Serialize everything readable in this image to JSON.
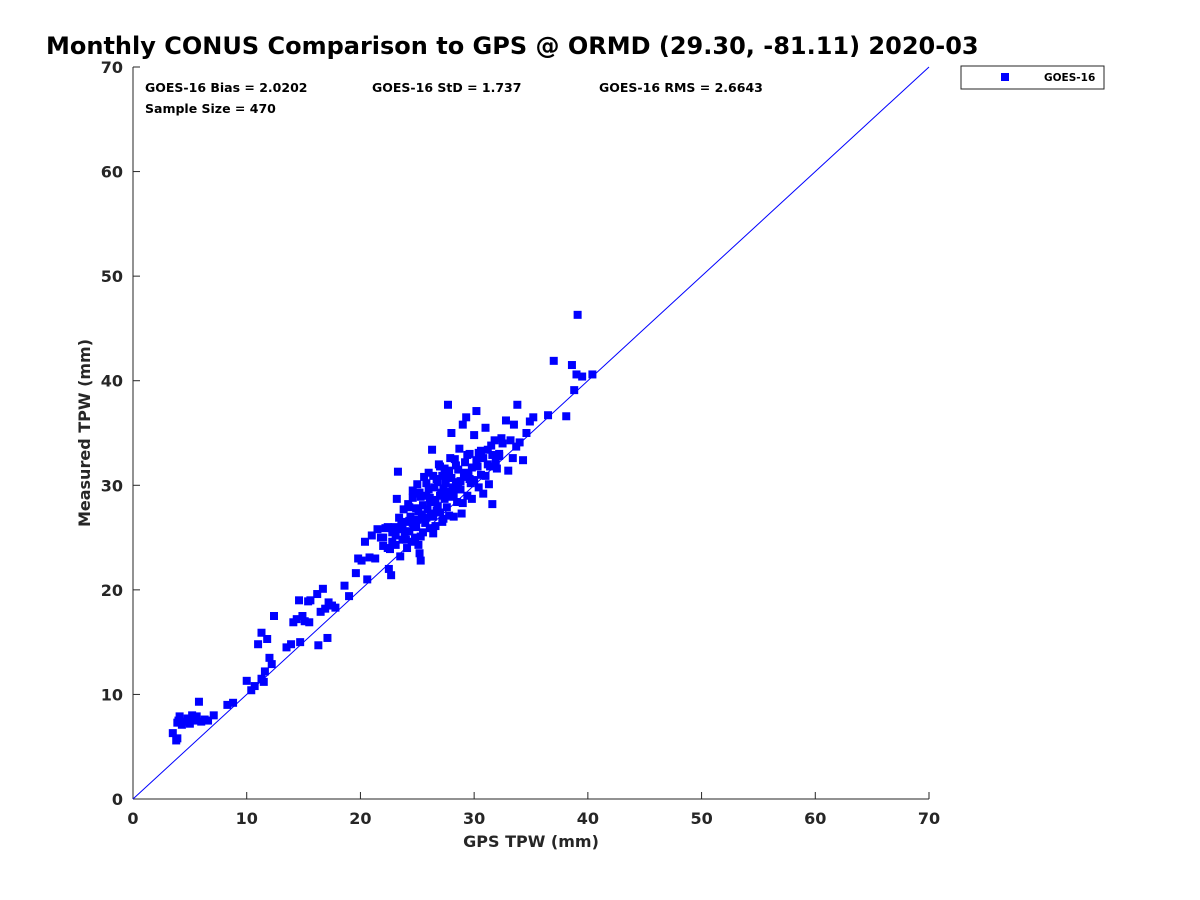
{
  "chart_data": {
    "type": "scatter",
    "title": "Monthly CONUS Comparison to GPS @ ORMD (29.30, -81.11) 2020-03",
    "xlabel": "GPS TPW (mm)",
    "ylabel": "Measured TPW (mm)",
    "xlim": [
      0,
      70
    ],
    "ylim": [
      0,
      70
    ],
    "xticks": [
      "0",
      "10",
      "20",
      "30",
      "40",
      "50",
      "60",
      "70"
    ],
    "yticks": [
      "0",
      "10",
      "20",
      "30",
      "40",
      "50",
      "60",
      "70"
    ],
    "grid": false,
    "legend": {
      "position": "top-right, outside",
      "entries": [
        "GOES-16"
      ]
    },
    "stats": {
      "bias": "GOES-16 Bias = 2.0202",
      "std": "GOES-16 StD = 1.737",
      "rms": "GOES-16 RMS = 2.6643",
      "sample_size": "Sample Size = 470"
    },
    "reference_line": {
      "name": "1:1 line",
      "x": [
        0,
        70
      ],
      "y": [
        0,
        70
      ],
      "color": "#0000ff"
    },
    "series": [
      {
        "name": "GOES-16",
        "marker": "square",
        "color": "#0000ff",
        "points": [
          [
            3.5,
            6.3
          ],
          [
            3.8,
            5.6
          ],
          [
            3.9,
            5.8
          ],
          [
            3.9,
            7.3
          ],
          [
            4.0,
            7.5
          ],
          [
            4.1,
            7.9
          ],
          [
            4.3,
            7.1
          ],
          [
            4.5,
            7.4
          ],
          [
            4.8,
            7.7
          ],
          [
            5.0,
            7.2
          ],
          [
            5.2,
            8.0
          ],
          [
            5.4,
            7.5
          ],
          [
            5.6,
            7.9
          ],
          [
            5.8,
            9.3
          ],
          [
            6.0,
            7.4
          ],
          [
            6.3,
            7.6
          ],
          [
            6.6,
            7.5
          ],
          [
            7.1,
            8.0
          ],
          [
            8.3,
            9.0
          ],
          [
            8.8,
            9.2
          ],
          [
            10.0,
            11.3
          ],
          [
            10.4,
            10.4
          ],
          [
            10.7,
            10.8
          ],
          [
            11.0,
            14.8
          ],
          [
            11.3,
            15.9
          ],
          [
            11.3,
            11.5
          ],
          [
            11.5,
            11.2
          ],
          [
            11.6,
            12.2
          ],
          [
            11.8,
            15.3
          ],
          [
            12.0,
            13.5
          ],
          [
            12.2,
            12.9
          ],
          [
            12.4,
            17.5
          ],
          [
            13.5,
            14.5
          ],
          [
            13.9,
            14.8
          ],
          [
            14.1,
            16.9
          ],
          [
            14.4,
            17.2
          ],
          [
            14.6,
            19.0
          ],
          [
            14.7,
            15.0
          ],
          [
            14.9,
            17.5
          ],
          [
            15.1,
            17.0
          ],
          [
            15.4,
            18.9
          ],
          [
            15.5,
            16.9
          ],
          [
            15.6,
            19.0
          ],
          [
            16.2,
            19.6
          ],
          [
            16.3,
            14.7
          ],
          [
            16.5,
            17.9
          ],
          [
            16.7,
            20.1
          ],
          [
            16.9,
            18.2
          ],
          [
            17.1,
            15.4
          ],
          [
            17.2,
            18.8
          ],
          [
            17.5,
            18.5
          ],
          [
            17.8,
            18.3
          ],
          [
            18.6,
            20.4
          ],
          [
            19.0,
            19.4
          ],
          [
            19.6,
            21.6
          ],
          [
            19.8,
            23.0
          ],
          [
            20.1,
            22.8
          ],
          [
            20.4,
            24.6
          ],
          [
            20.6,
            21.0
          ],
          [
            20.8,
            23.1
          ],
          [
            21.0,
            25.2
          ],
          [
            21.3,
            23.0
          ],
          [
            21.5,
            25.8
          ],
          [
            21.8,
            25.0
          ],
          [
            22.0,
            24.2
          ],
          [
            22.2,
            25.9
          ],
          [
            22.4,
            24.0
          ],
          [
            22.5,
            22.0
          ],
          [
            22.6,
            23.9
          ],
          [
            22.7,
            21.4
          ],
          [
            22.8,
            25.5
          ],
          [
            23.0,
            26.0
          ],
          [
            23.1,
            24.3
          ],
          [
            23.2,
            28.7
          ],
          [
            23.3,
            31.3
          ],
          [
            23.4,
            25.8
          ],
          [
            23.5,
            23.2
          ],
          [
            23.6,
            26.3
          ],
          [
            23.7,
            24.8
          ],
          [
            23.8,
            27.7
          ],
          [
            23.9,
            25.2
          ],
          [
            24.0,
            26.5
          ],
          [
            24.1,
            24.0
          ],
          [
            24.2,
            28.2
          ],
          [
            24.3,
            25.6
          ],
          [
            24.4,
            27.0
          ],
          [
            24.5,
            24.6
          ],
          [
            24.6,
            29.5
          ],
          [
            24.7,
            26.2
          ],
          [
            24.8,
            25.0
          ],
          [
            24.9,
            27.8
          ],
          [
            25.0,
            30.1
          ],
          [
            25.0,
            26.7
          ],
          [
            25.1,
            24.3
          ],
          [
            25.2,
            23.5
          ],
          [
            25.3,
            28.9
          ],
          [
            25.3,
            22.8
          ],
          [
            25.4,
            27.2
          ],
          [
            25.5,
            25.5
          ],
          [
            25.6,
            30.8
          ],
          [
            25.7,
            26.4
          ],
          [
            25.8,
            29.0
          ],
          [
            25.9,
            27.7
          ],
          [
            26.0,
            31.2
          ],
          [
            26.1,
            25.9
          ],
          [
            26.2,
            28.4
          ],
          [
            26.3,
            33.4
          ],
          [
            26.4,
            27.0
          ],
          [
            26.5,
            29.8
          ],
          [
            26.6,
            26.1
          ],
          [
            26.7,
            30.6
          ],
          [
            26.8,
            28.0
          ],
          [
            26.9,
            32.0
          ],
          [
            27.0,
            27.4
          ],
          [
            27.1,
            29.3
          ],
          [
            27.2,
            30.9
          ],
          [
            27.3,
            26.8
          ],
          [
            27.4,
            28.7
          ],
          [
            27.5,
            30.2
          ],
          [
            27.6,
            27.9
          ],
          [
            27.7,
            37.7
          ],
          [
            27.8,
            31.4
          ],
          [
            27.9,
            28.9
          ],
          [
            28.0,
            35.0
          ],
          [
            28.1,
            29.8
          ],
          [
            28.2,
            27.0
          ],
          [
            28.3,
            32.5
          ],
          [
            28.4,
            30.3
          ],
          [
            28.5,
            28.4
          ],
          [
            28.6,
            31.5
          ],
          [
            28.7,
            33.5
          ],
          [
            28.8,
            29.6
          ],
          [
            28.9,
            27.3
          ],
          [
            29.0,
            35.8
          ],
          [
            29.1,
            30.8
          ],
          [
            29.2,
            32.2
          ],
          [
            29.3,
            36.5
          ],
          [
            29.4,
            29.0
          ],
          [
            29.5,
            31.1
          ],
          [
            29.6,
            33.0
          ],
          [
            29.7,
            30.2
          ],
          [
            29.8,
            28.7
          ],
          [
            30.0,
            34.8
          ],
          [
            30.2,
            37.1
          ],
          [
            30.3,
            31.8
          ],
          [
            30.4,
            29.8
          ],
          [
            30.6,
            33.3
          ],
          [
            30.8,
            29.2
          ],
          [
            31.0,
            35.5
          ],
          [
            31.2,
            32.0
          ],
          [
            31.3,
            30.1
          ],
          [
            31.5,
            33.8
          ],
          [
            31.6,
            28.2
          ],
          [
            31.8,
            34.3
          ],
          [
            32.0,
            31.6
          ],
          [
            32.2,
            32.8
          ],
          [
            32.4,
            34.5
          ],
          [
            32.8,
            36.2
          ],
          [
            33.0,
            31.4
          ],
          [
            33.2,
            34.3
          ],
          [
            33.4,
            32.6
          ],
          [
            33.5,
            35.8
          ],
          [
            33.7,
            33.7
          ],
          [
            33.8,
            37.7
          ],
          [
            34.0,
            34.1
          ],
          [
            34.3,
            32.4
          ],
          [
            34.6,
            35.0
          ],
          [
            34.9,
            36.1
          ],
          [
            35.2,
            36.5
          ],
          [
            36.5,
            36.7
          ],
          [
            37.0,
            41.9
          ],
          [
            38.1,
            36.6
          ],
          [
            38.6,
            41.5
          ],
          [
            38.8,
            39.1
          ],
          [
            39.0,
            40.6
          ],
          [
            39.1,
            46.3
          ],
          [
            39.5,
            40.4
          ],
          [
            40.4,
            40.6
          ],
          [
            24.1,
            25.6
          ],
          [
            24.3,
            27.9
          ],
          [
            24.6,
            26.4
          ],
          [
            24.8,
            29.2
          ],
          [
            25.1,
            27.5
          ],
          [
            25.3,
            25.1
          ],
          [
            25.5,
            28.1
          ],
          [
            25.8,
            26.9
          ],
          [
            26.0,
            29.6
          ],
          [
            26.2,
            27.3
          ],
          [
            26.4,
            25.4
          ],
          [
            26.6,
            28.6
          ],
          [
            26.8,
            30.3
          ],
          [
            27.0,
            29.0
          ],
          [
            27.2,
            26.5
          ],
          [
            27.4,
            31.6
          ],
          [
            27.6,
            29.4
          ],
          [
            27.8,
            27.1
          ],
          [
            28.0,
            30.7
          ],
          [
            28.2,
            29.1
          ],
          [
            28.4,
            31.9
          ],
          [
            28.6,
            29.9
          ],
          [
            28.8,
            30.4
          ],
          [
            29.0,
            28.3
          ],
          [
            29.2,
            31.2
          ],
          [
            29.4,
            32.9
          ],
          [
            29.6,
            30.6
          ],
          [
            29.8,
            31.7
          ],
          [
            30.0,
            30.5
          ],
          [
            30.2,
            32.4
          ],
          [
            30.4,
            33.1
          ],
          [
            30.6,
            31.0
          ],
          [
            30.8,
            32.6
          ],
          [
            31.0,
            30.9
          ],
          [
            31.2,
            33.4
          ],
          [
            31.4,
            31.8
          ],
          [
            31.6,
            32.9
          ],
          [
            31.9,
            32.2
          ],
          [
            32.2,
            33.0
          ],
          [
            32.5,
            34.0
          ],
          [
            22.0,
            25.0
          ],
          [
            22.4,
            26.0
          ],
          [
            22.8,
            24.6
          ],
          [
            23.1,
            25.2
          ],
          [
            23.4,
            26.9
          ],
          [
            23.7,
            25.9
          ],
          [
            24.0,
            24.8
          ],
          [
            24.3,
            26.6
          ],
          [
            24.6,
            28.8
          ],
          [
            24.9,
            26.0
          ],
          [
            25.2,
            29.3
          ],
          [
            25.5,
            26.8
          ],
          [
            25.8,
            30.2
          ],
          [
            26.1,
            28.8
          ],
          [
            26.4,
            30.9
          ],
          [
            26.7,
            27.6
          ],
          [
            27.0,
            31.8
          ],
          [
            27.3,
            29.7
          ],
          [
            27.6,
            30.8
          ],
          [
            27.9,
            32.6
          ]
        ]
      }
    ]
  }
}
